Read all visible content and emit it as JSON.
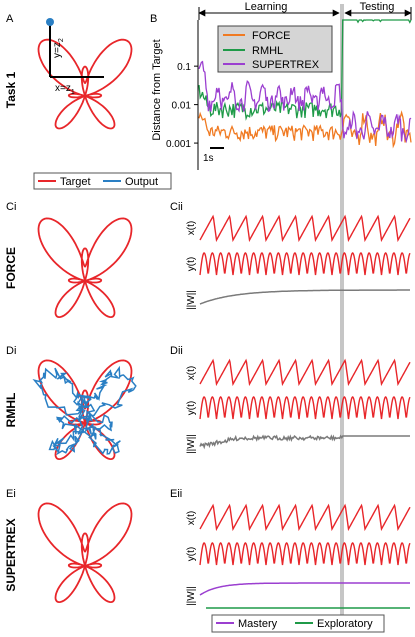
{
  "panel_labels": {
    "A": "A",
    "B": "B",
    "Ci": "Ci",
    "Cii": "Cii",
    "Di": "Di",
    "Dii": "Dii",
    "Ei": "Ei",
    "Eii": "Eii"
  },
  "row_labels": {
    "task": "Task 1",
    "force": "FORCE",
    "rmhl": "RMHL",
    "supertrex": "SUPERTREX"
  },
  "panel_a": {
    "y_label": "y=z",
    "y_sub": "2",
    "x_label": "x=z",
    "x_sub": "1"
  },
  "phases": {
    "learning": "Learning",
    "testing": "Testing"
  },
  "shape_legend": {
    "target": "Target",
    "output": "Output"
  },
  "trace_labels": {
    "x": "x(t)",
    "y": "y(t)",
    "w": "||W||"
  },
  "bottom_legend": {
    "mastery": "Mastery",
    "exploratory": "Exploratory"
  },
  "colors": {
    "target": "#e8262a",
    "output": "#2a7fc4",
    "force": "#f07a22",
    "rmhl": "#1f9a48",
    "supertrex": "#9b3fd0",
    "weight": "#7a7a7a",
    "testing_line": "#bdbdbd"
  },
  "chart_data": {
    "type": "line",
    "title": "",
    "xlabel": "",
    "ylabel": "Distance from Target",
    "y_scale": "log",
    "y_ticks": [
      "0.1",
      "0.01",
      "0.001"
    ],
    "scale_bar_label": "1s",
    "legend_placement": "top-left",
    "series": [
      {
        "name": "FORCE",
        "learning_level": 0.002,
        "testing_level": 0.0015
      },
      {
        "name": "RMHL",
        "learning_level": 0.008,
        "testing_level": 2.5
      },
      {
        "name": "SUPERTREX",
        "learning_level": 0.012,
        "testing_level": 0.002
      }
    ]
  }
}
